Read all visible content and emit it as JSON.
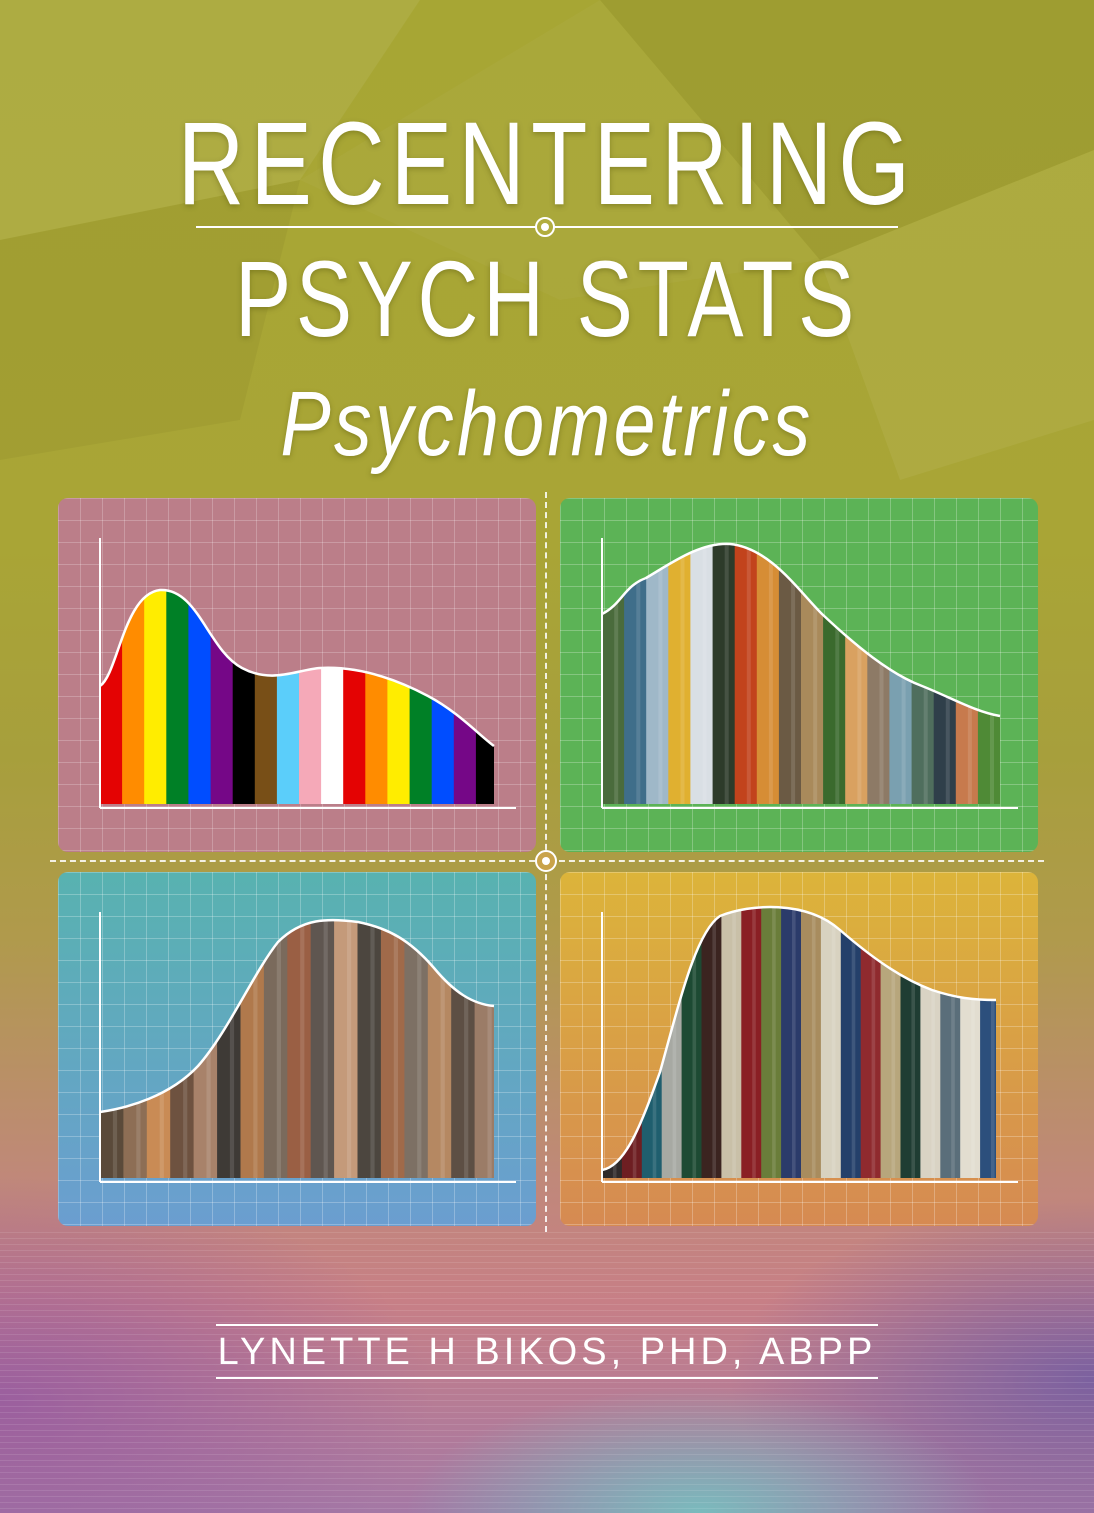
{
  "cover": {
    "title_line1": "RECENTERING",
    "title_line2": "PSYCH STATS",
    "subtitle": "Psychometrics",
    "author": "LYNETTE H BIKOS, PHD, ABPP"
  },
  "colors": {
    "background_top": "#a7a634",
    "background_bottom": "#a478a5",
    "panel_pink": "#bb7e89",
    "panel_green": "#5cb356",
    "panel_blue": "#6aa7b4",
    "panel_gold": "#dca63e",
    "title_text": "#ffffff"
  },
  "panels": [
    {
      "name": "pride-flag-distribution",
      "fill": "pride flag stripes with gender symbols",
      "stripes": [
        "#e40303",
        "#ff8c00",
        "#ffed00",
        "#008026",
        "#004dff",
        "#750787",
        "#000000",
        "#784f17",
        "#5bcefa",
        "#f5a9b8",
        "#ffffff",
        "#e40303",
        "#ff8c00",
        "#ffed00",
        "#008026",
        "#004dff",
        "#750787",
        "#000000"
      ]
    },
    {
      "name": "nature-photos-distribution",
      "fill": "nature photo strips",
      "stripes": [
        "#4a6b3c",
        "#3f6e8a",
        "#9fb8c8",
        "#e0b030",
        "#d9dfe4",
        "#2d3b2a",
        "#c2431c",
        "#d68d35",
        "#6b5a44",
        "#a98a5b",
        "#3a6a2d",
        "#d9a160",
        "#8d7a66",
        "#7aa0b0",
        "#4f6e5d",
        "#2f3f4a",
        "#c77a4d",
        "#4f8a36"
      ]
    },
    {
      "name": "people-photos-distribution",
      "fill": "crowd photo strips",
      "stripes": [
        "#5a4a3a",
        "#8d6e55",
        "#c98b55",
        "#6e5240",
        "#a8826a",
        "#3e3a36",
        "#b0794c",
        "#7a6a5c",
        "#9a5f44",
        "#5f5650",
        "#c49a7a",
        "#4c463f",
        "#a06a4a",
        "#7d7064",
        "#b58862",
        "#5d4f44",
        "#9b7c67"
      ]
    },
    {
      "name": "journals-distribution",
      "fill": "journal spine strips",
      "stripes": [
        "#2f2a2a",
        "#6e1e22",
        "#1f5e6e",
        "#a7a9a3",
        "#1d4a33",
        "#3b2420",
        "#c9c0a8",
        "#8a1f24",
        "#6a7d3a",
        "#2b3b6a",
        "#a88c5e",
        "#d8d2c0",
        "#24406a",
        "#8f2a2e",
        "#b7a67c",
        "#1f3d33",
        "#d9d3c4",
        "#5a6e7a",
        "#e2ddd0",
        "#2c4f7c"
      ]
    }
  ]
}
